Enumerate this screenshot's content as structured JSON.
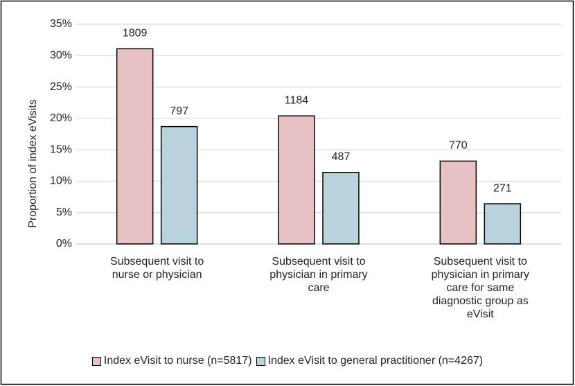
{
  "chart_data": {
    "type": "bar",
    "y_label": "Proportion of index eVisits",
    "categories": [
      "Subsequent visit to nurse or physician",
      "Subsequent visit to physician in primary care",
      "Subsequent visit to physician in primary care for same diagnostic group as eVisit"
    ],
    "series": [
      {
        "name": "Index eVisit to nurse (n=5817)",
        "color": "#e8c1c4",
        "values": [
          31.1,
          20.4,
          13.2
        ],
        "counts": [
          1809,
          1184,
          770
        ]
      },
      {
        "name": "Index eVisit to general practitioner (n=4267)",
        "color": "#b9d3dc",
        "values": [
          18.7,
          11.4,
          6.4
        ],
        "counts": [
          797,
          487,
          271
        ]
      }
    ],
    "ylim": [
      0,
      35
    ],
    "yticks": [
      {
        "value": 0,
        "label": "0%"
      },
      {
        "value": 5,
        "label": "5%"
      },
      {
        "value": 10,
        "label": "10%"
      },
      {
        "value": 15,
        "label": "15%"
      },
      {
        "value": 20,
        "label": "20%"
      },
      {
        "value": 25,
        "label": "25%"
      },
      {
        "value": 30,
        "label": "30%"
      },
      {
        "value": 35,
        "label": "35%"
      }
    ],
    "grid": true,
    "legend": "bottom"
  }
}
